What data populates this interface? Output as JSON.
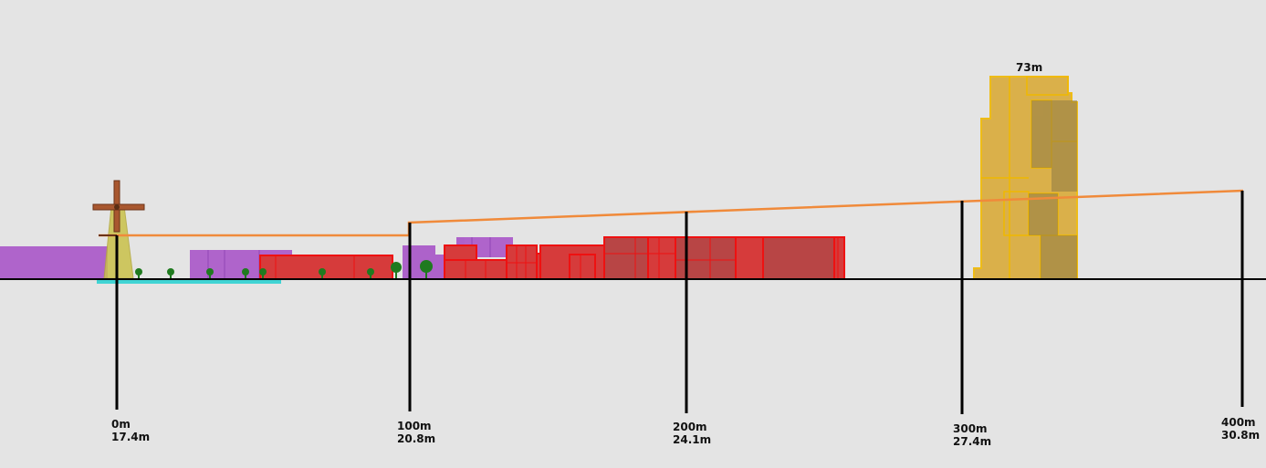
{
  "distance_markers": [
    {
      "distance": "0m",
      "elevation": "17.4m"
    },
    {
      "distance": "100m",
      "elevation": "20.8m"
    },
    {
      "distance": "200m",
      "elevation": "24.1m"
    },
    {
      "distance": "300m",
      "elevation": "27.4m"
    },
    {
      "distance": "400m",
      "elevation": "30.8m"
    }
  ],
  "building_height_label": "73m",
  "colors": {
    "background": "#e4e4e4",
    "ground": "#000000",
    "sightline": "#f08a3a",
    "residential": "#a855c8",
    "commercial": "#d63b3b",
    "commercial_stroke": "#ee1111",
    "tower": "#d9ab3a",
    "tower_stroke": "#f0b800",
    "water": "#40d4d4",
    "tree": "#1f7a1f",
    "windmill": "#8b4a2a"
  }
}
